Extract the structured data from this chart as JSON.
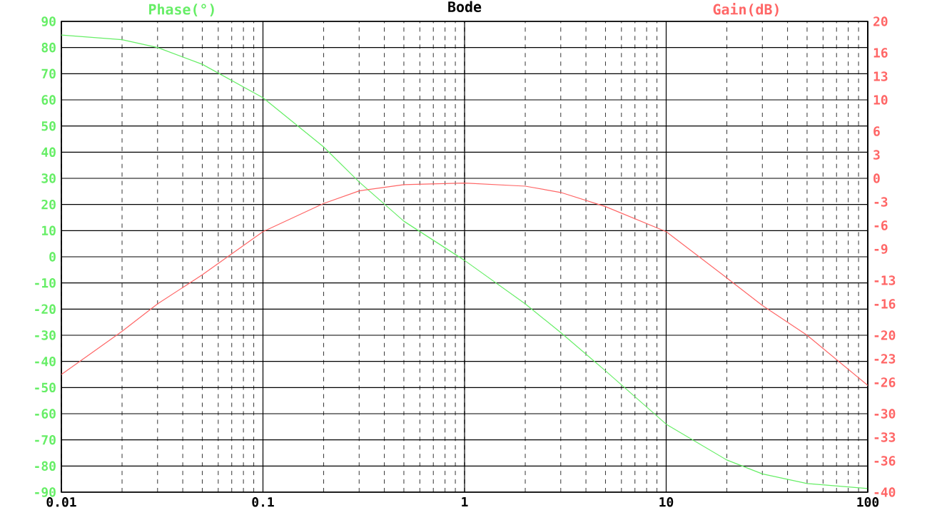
{
  "chart_data": {
    "type": "line",
    "title": "Bode",
    "ylabel": "Phase(°)",
    "y2label": "Gain(dB)",
    "x": [
      0.01,
      0.02,
      0.03,
      0.05,
      0.1,
      0.2,
      0.3,
      0.5,
      1,
      2,
      3,
      5,
      10,
      20,
      30,
      50,
      100
    ],
    "series": [
      {
        "color": "#66ee66",
        "values": [
          84.8,
          83,
          80,
          73.6,
          60.8,
          42,
          28.6,
          13.6,
          -1.4,
          -18,
          -29,
          -43.6,
          -64,
          -77.7,
          -83,
          -86.7,
          -88.6
        ]
      },
      {
        "color": "#ff6666",
        "axis": "y2",
        "values": [
          -25,
          -19.5,
          -16,
          -12.3,
          -6.8,
          -3.2,
          -1.6,
          -0.8,
          -0.6,
          -1,
          -1.8,
          -3.6,
          -6.8,
          -12.7,
          -16.2,
          -20,
          -26.4
        ]
      }
    ],
    "log": "x",
    "grid": true,
    "marker": "none",
    "line_style": "solid",
    "xlim": [
      0.01,
      100
    ],
    "xticks": [
      0.01,
      0.1,
      1,
      10,
      100
    ],
    "ylim": [
      -90,
      90
    ],
    "yticks": [
      -90,
      -80,
      -70,
      -60,
      -50,
      -40,
      -30,
      -20,
      -10,
      0,
      10,
      20,
      30,
      40,
      50,
      60,
      70,
      80,
      90
    ],
    "y2lim": [
      -40,
      20
    ],
    "y2ticks": [
      -40,
      -36,
      -33,
      -30,
      -26,
      -23,
      -20,
      -16,
      -13,
      -9,
      -6,
      -3,
      0,
      3,
      6,
      10,
      13,
      16,
      20
    ]
  }
}
